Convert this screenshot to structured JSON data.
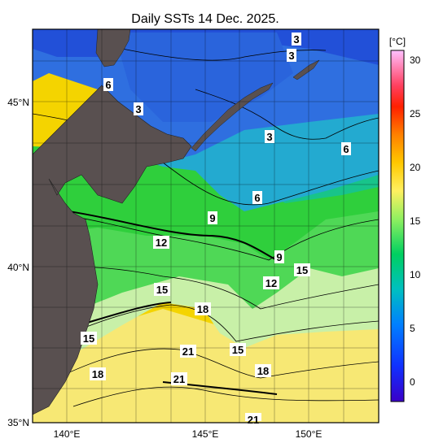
{
  "title": "Daily SSTs 14 Dec. 2025.",
  "colorbar": {
    "unit": "[°C]",
    "ticks": [
      "30",
      "25",
      "20",
      "15",
      "10",
      "5",
      "0"
    ]
  },
  "axes": {
    "lat_ticks": [
      "45°N",
      "40°N",
      "35°N"
    ],
    "lon_ticks": [
      "140°E",
      "145°E",
      "150°E"
    ]
  },
  "contour_labels": [
    "3",
    "3",
    "3",
    "3",
    "6",
    "6",
    "6",
    "9",
    "9",
    "12",
    "12",
    "15",
    "15",
    "15",
    "15",
    "18",
    "18",
    "18",
    "21",
    "21",
    "21"
  ],
  "colors": {
    "land": "#595050",
    "cold": "#1f4fd8",
    "cool": "#2a9fd0",
    "mid": "#22c98a",
    "green": "#30d23a",
    "light_green": "#b8f0a0",
    "warm": "#f3e66a",
    "hot": "#f5c000"
  }
}
